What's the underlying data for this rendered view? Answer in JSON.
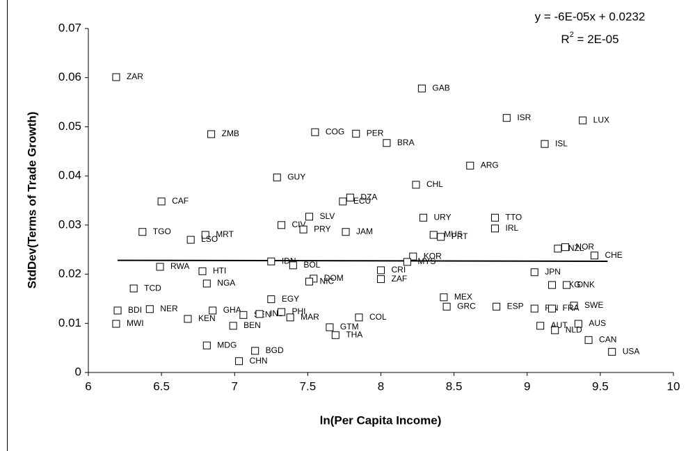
{
  "chart_data": {
    "type": "scatter",
    "x_label": "ln(Per Capita Income)",
    "y_label": "StdDev(Terms of Trade Growth)",
    "equation": "y = -6E-05x + 0.0232",
    "r2_label": {
      "base": "R",
      "sup": "2",
      "rest": " = 2E-05"
    },
    "trendline": {
      "slope": -6e-05,
      "intercept": 0.0232,
      "x": [
        6.2,
        9.55
      ]
    },
    "xlim": [
      6,
      10
    ],
    "xticks": [
      6,
      6.5,
      7,
      7.5,
      8,
      8.5,
      9,
      9.5,
      10
    ],
    "ylim": [
      0,
      0.07
    ],
    "yticks": [
      0,
      0.01,
      0.02,
      0.03,
      0.04,
      0.05,
      0.06,
      0.07
    ],
    "color": "#000000",
    "points": {
      "labels": [
        "ZAR",
        "ZMB",
        "GAB",
        "ISR",
        "LUX",
        "ISL",
        "COG",
        "PER",
        "BRA",
        "ARG",
        "GUY",
        "CHL",
        "CAF",
        "DZA",
        "ECU",
        "SLV",
        "URY",
        "TTO",
        "CIV",
        "PRY",
        "TGO",
        "MRT",
        "JAM",
        "MUS",
        "PRT",
        "IRL",
        "LSO",
        "NZL",
        "NOR",
        "CHE",
        "KOR",
        "MYS",
        "IDN",
        "BOL",
        "RWA",
        "HTI",
        "JPN",
        "CRI",
        "NGA",
        "DOM",
        "NIC",
        "ZAF",
        "HKG",
        "DNK",
        "TCD",
        "EGY",
        "MEX",
        "GRC",
        "ESP",
        "SWE",
        "FIN",
        "FRA",
        "BDI",
        "NER",
        "GHA",
        "SEN",
        "IND",
        "PHI",
        "MAR",
        "COL",
        "KEN",
        "MWI",
        "AUS",
        "BEN",
        "AUT",
        "NLD",
        "GTM",
        "THA",
        "CAN",
        "USA",
        "MDG",
        "BGD",
        "CHN"
      ],
      "x": [
        6.19,
        6.84,
        8.28,
        8.86,
        9.38,
        9.12,
        7.55,
        7.83,
        8.04,
        8.61,
        7.29,
        8.24,
        6.5,
        7.79,
        7.74,
        7.51,
        8.29,
        8.78,
        7.32,
        7.47,
        6.37,
        6.8,
        7.76,
        8.36,
        8.41,
        8.78,
        6.7,
        9.21,
        9.26,
        9.46,
        8.22,
        8.18,
        7.25,
        7.4,
        6.49,
        6.78,
        9.05,
        8.0,
        6.81,
        7.54,
        7.51,
        8.0,
        9.17,
        9.27,
        6.31,
        7.25,
        8.43,
        8.45,
        8.79,
        9.32,
        9.05,
        9.17,
        6.2,
        6.42,
        6.85,
        7.06,
        7.17,
        7.32,
        7.38,
        7.85,
        6.68,
        6.19,
        9.35,
        6.99,
        9.09,
        9.19,
        7.65,
        7.69,
        9.42,
        9.58,
        6.81,
        7.14,
        7.03
      ],
      "y": [
        0.0601,
        0.0485,
        0.0578,
        0.0518,
        0.0513,
        0.0465,
        0.0489,
        0.0486,
        0.0467,
        0.0421,
        0.0397,
        0.0382,
        0.0348,
        0.0356,
        0.0348,
        0.0317,
        0.0315,
        0.0315,
        0.03,
        0.0291,
        0.0286,
        0.028,
        0.0286,
        0.028,
        0.0276,
        0.0293,
        0.027,
        0.0252,
        0.0255,
        0.0238,
        0.0236,
        0.0225,
        0.0226,
        0.0218,
        0.0215,
        0.0206,
        0.0204,
        0.0208,
        0.0181,
        0.0191,
        0.0185,
        0.019,
        0.0178,
        0.0178,
        0.0171,
        0.0149,
        0.0153,
        0.0134,
        0.0134,
        0.0136,
        0.013,
        0.013,
        0.0126,
        0.0129,
        0.0126,
        0.0117,
        0.0119,
        0.0123,
        0.0112,
        0.0112,
        0.0109,
        0.0099,
        0.0099,
        0.0095,
        0.0095,
        0.0086,
        0.0092,
        0.0076,
        0.0066,
        0.0042,
        0.0055,
        0.0044,
        0.0023
      ]
    }
  }
}
